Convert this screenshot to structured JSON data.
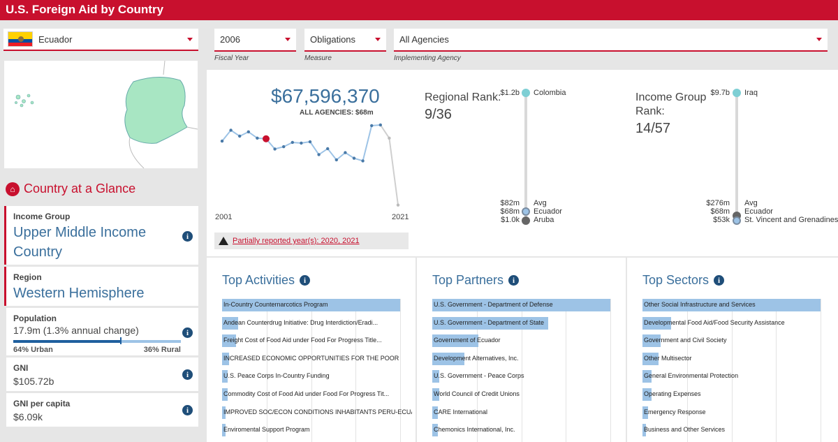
{
  "header": {
    "title": "U.S. Foreign Aid by Country"
  },
  "country_select": {
    "value": "Ecuador",
    "flag_icon": "ecuador-flag-icon"
  },
  "glance": {
    "title": "Country at a Glance",
    "icon": "country-icon"
  },
  "cards": {
    "income_group": {
      "label": "Income Group",
      "value": "Upper Middle Income Country"
    },
    "region": {
      "label": "Region",
      "value": "Western Hemisphere"
    },
    "population": {
      "label": "Population",
      "value": "17.9m (1.3% annual change)",
      "urban_label": "64% Urban",
      "rural_label": "36% Rural",
      "urban_pct": 64
    },
    "gni": {
      "label": "GNI",
      "value": "$105.72b"
    },
    "gni_per_capita": {
      "label": "GNI per capita",
      "value": "$6.09k"
    }
  },
  "filters": {
    "year": {
      "value": "2006",
      "caption": "Fiscal Year"
    },
    "measure": {
      "value": "Obligations",
      "caption": "Measure"
    },
    "agency": {
      "value": "All Agencies",
      "caption": "Implementing Agency"
    }
  },
  "summary": {
    "amount": "$67,596,370",
    "subtitle": "ALL AGENCIES: $68m",
    "start_year": "2001",
    "end_year": "2021",
    "warning": "Partially reported year(s): 2020, 2021"
  },
  "chart_data": {
    "type": "line",
    "title": "",
    "x": [
      2001,
      2002,
      2003,
      2004,
      2005,
      2006,
      2007,
      2008,
      2009,
      2010,
      2011,
      2012,
      2013,
      2014,
      2015,
      2016,
      2017,
      2018,
      2019,
      2020,
      2021
    ],
    "values": [
      0.49,
      0.82,
      0.64,
      0.77,
      0.58,
      0.56,
      0.25,
      0.32,
      0.45,
      0.43,
      0.47,
      0.08,
      0.26,
      -0.08,
      0.14,
      -0.03,
      -0.11,
      0.96,
      0.98,
      0.58,
      -1.45
    ],
    "series": [
      {
        "values": [
          0.49,
          0.82,
          0.64,
          0.77,
          0.58,
          0.56,
          0.25,
          0.32,
          0.45,
          0.43,
          0.47,
          0.08,
          0.26,
          -0.08,
          0.14,
          -0.03,
          -0.11,
          0.96,
          0.98,
          0.58,
          -1.45
        ]
      }
    ],
    "highlighted": "2006",
    "partial_years": [
      2020,
      2021
    ],
    "axes_shown": false
  },
  "regional_rank": {
    "title_line1": "Regional Rank:",
    "value": "9/36",
    "top": {
      "amount": "$1.2b",
      "name": "Colombia"
    },
    "avg": {
      "amount": "$82m",
      "name": "Avg"
    },
    "self": {
      "amount": "$68m",
      "name": "Ecuador"
    },
    "bottom": {
      "amount": "$1.0k",
      "name": "Aruba"
    }
  },
  "income_rank": {
    "title_line1": "Income Group",
    "title_line2": "Rank:",
    "value": "14/57",
    "top": {
      "amount": "$9.7b",
      "name": "Iraq"
    },
    "avg": {
      "amount": "$276m",
      "name": "Avg"
    },
    "self": {
      "amount": "$68m",
      "name": "Ecuador"
    },
    "bottom": {
      "amount": "$53k",
      "name": "St. Vincent and Grenadines"
    }
  },
  "panels": [
    {
      "title": "Top Activities",
      "items": [
        {
          "label": "In-Country Counternarcotics Program",
          "value": 1.0
        },
        {
          "label": "Andean Counterdrug Initiative: Drug Interdiction/Eradi...",
          "value": 0.09
        },
        {
          "label": "Freight Cost of Food Aid under Food For Progress Title...",
          "value": 0.08
        },
        {
          "label": "INCREASED ECONOMIC OPPORTUNITIES FOR THE POOR",
          "value": 0.04
        },
        {
          "label": "U.S. Peace Corps In-Country Funding",
          "value": 0.03
        },
        {
          "label": "Commodity Cost of Food Aid under Food For Progress Tit...",
          "value": 0.03
        },
        {
          "label": "IMPROVED SOC/ECON CONDITIONS INHABITANTS PERU-ECUADOR ...",
          "value": 0.02
        },
        {
          "label": "Enviromental Support Program",
          "value": 0.02
        }
      ]
    },
    {
      "title": "Top Partners",
      "items": [
        {
          "label": "U.S. Government - Department of Defense",
          "value": 1.0
        },
        {
          "label": "U.S. Government - Department of State",
          "value": 0.65
        },
        {
          "label": "Government of Ecuador",
          "value": 0.26
        },
        {
          "label": "Development Alternatives, Inc.",
          "value": 0.18
        },
        {
          "label": "U.S. Government - Peace Corps",
          "value": 0.04
        },
        {
          "label": "World Council of Credit Unions",
          "value": 0.04
        },
        {
          "label": "CARE International",
          "value": 0.03
        },
        {
          "label": "Chemonics International, Inc.",
          "value": 0.03
        }
      ]
    },
    {
      "title": "Top Sectors",
      "items": [
        {
          "label": "Other Social Infrastructure and Services",
          "value": 1.0
        },
        {
          "label": "Developmental Food Aid/Food Security Assistance",
          "value": 0.16
        },
        {
          "label": "Government and Civil Society",
          "value": 0.1
        },
        {
          "label": "Other Multisector",
          "value": 0.09
        },
        {
          "label": "General Environmental Protection",
          "value": 0.05
        },
        {
          "label": "Operating Expenses",
          "value": 0.05
        },
        {
          "label": "Emergency Response",
          "value": 0.03
        },
        {
          "label": "Business and Other Services",
          "value": 0.02
        }
      ]
    }
  ],
  "colors": {
    "brand": "#c8102e",
    "accent": "#3a6f9c",
    "bar": "#9dc3e6",
    "line": "#9dc3e6",
    "highlight": "#c8102e"
  }
}
